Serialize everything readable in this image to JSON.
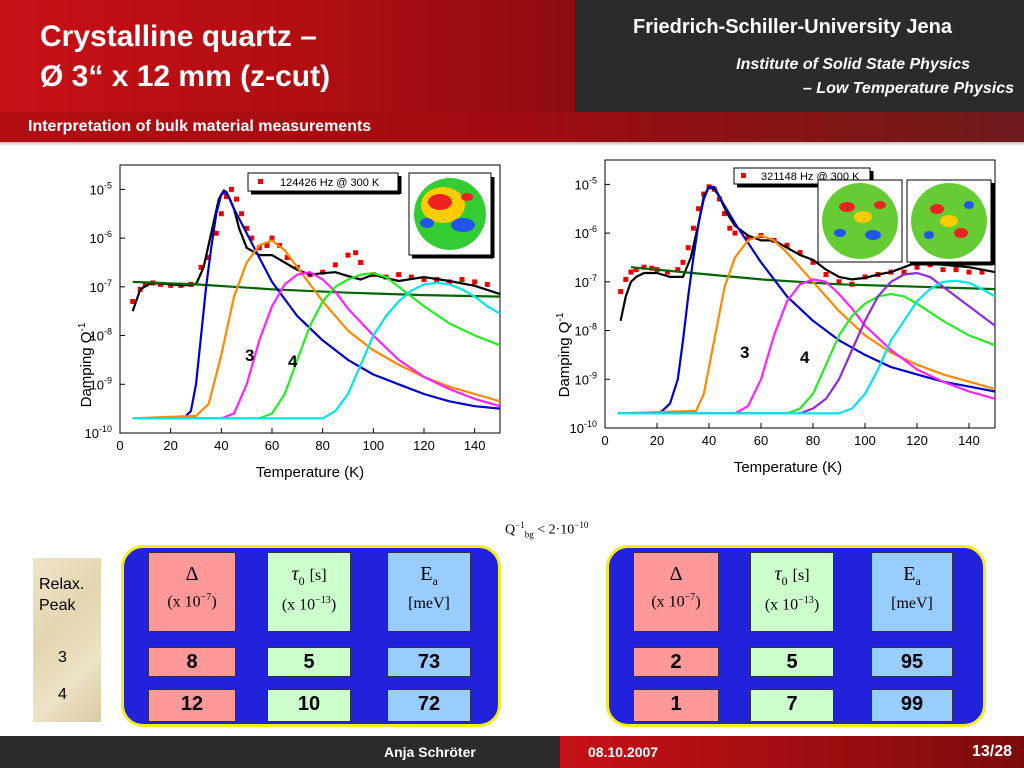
{
  "header": {
    "title_line1": "Crystalline quartz –",
    "title_line2": "Ø 3“ x 12 mm (z-cut)",
    "university": "Friedrich-Schiller-University Jena",
    "institute_line1": "Institute of Solid State Physics",
    "institute_line2": "– Low Temperature Physics",
    "subtitle": "Interpretation of bulk material measurements"
  },
  "chart_data": [
    {
      "type": "line",
      "legend": "124426 Hz @ 300 K",
      "xlabel": "Temperature (K)",
      "ylabel": "Damping Q",
      "ylabel_sup": "-1",
      "xlim": [
        0,
        150
      ],
      "ylim_log10": [
        -10,
        -4.5
      ],
      "xticks": [
        0,
        20,
        40,
        60,
        80,
        100,
        120,
        140
      ],
      "yticks": [
        -10,
        -9,
        -8,
        -7,
        -6,
        -5
      ],
      "peak_labels": [
        "3",
        "4"
      ],
      "series": [
        {
          "color": "#ee0000",
          "style": "markers",
          "x": [
            5,
            8,
            10,
            13,
            16,
            20,
            24,
            28,
            32,
            35,
            38,
            40,
            42,
            44,
            46,
            48,
            50,
            52,
            55,
            58,
            60,
            63,
            66,
            70,
            75,
            80,
            85,
            90,
            93,
            95,
            100,
            105,
            110,
            115,
            120,
            125,
            130,
            135,
            140,
            145
          ],
          "y": [
            -7.3,
            -7.05,
            -6.95,
            -6.92,
            -6.95,
            -6.97,
            -6.97,
            -6.95,
            -6.6,
            -6.4,
            -5.9,
            -5.5,
            -5.15,
            -5.0,
            -5.2,
            -5.5,
            -5.8,
            -6.0,
            -6.2,
            -6.15,
            -6.0,
            -6.15,
            -6.4,
            -6.6,
            -6.75,
            -6.7,
            -6.55,
            -6.35,
            -6.3,
            -6.5,
            -6.75,
            -6.8,
            -6.75,
            -6.8,
            -6.85,
            -6.85,
            -6.9,
            -6.85,
            -6.9,
            -6.95
          ]
        },
        {
          "color": "#000000",
          "x": [
            5,
            8,
            12,
            16,
            20,
            25,
            30,
            33,
            36,
            39,
            41,
            43,
            45,
            47,
            50,
            55,
            60,
            65,
            70,
            75,
            80,
            85,
            90,
            95,
            100,
            105,
            110,
            120,
            130,
            140,
            150
          ],
          "y": [
            -7.5,
            -7.05,
            -6.93,
            -6.93,
            -6.95,
            -6.97,
            -6.95,
            -6.6,
            -5.9,
            -5.2,
            -5.02,
            -5.15,
            -5.4,
            -5.8,
            -6.2,
            -6.35,
            -6.35,
            -6.5,
            -6.65,
            -6.75,
            -6.72,
            -6.7,
            -6.78,
            -6.85,
            -6.75,
            -6.82,
            -6.88,
            -6.8,
            -6.88,
            -6.98,
            -7.15
          ]
        },
        {
          "color": "#006400",
          "x": [
            5,
            30,
            60,
            90,
            120,
            150
          ],
          "y": [
            -6.9,
            -6.95,
            -7.05,
            -7.12,
            -7.17,
            -7.2
          ]
        },
        {
          "color": "#0000cc",
          "x": [
            20,
            25,
            28,
            30,
            32,
            34,
            36,
            38,
            40,
            42,
            45,
            50,
            55,
            60,
            70,
            80,
            90,
            100,
            110,
            120,
            130,
            140,
            150
          ],
          "y": [
            -9.7,
            -9.7,
            -9.55,
            -9.0,
            -8.0,
            -7.0,
            -6.2,
            -5.5,
            -5.1,
            -5.05,
            -5.4,
            -5.9,
            -6.4,
            -6.9,
            -7.6,
            -8.1,
            -8.5,
            -8.8,
            -9.0,
            -9.2,
            -9.35,
            -9.45,
            -9.5
          ]
        },
        {
          "color": "#ff8800",
          "x": [
            5,
            30,
            35,
            40,
            45,
            50,
            55,
            60,
            65,
            70,
            80,
            90,
            100,
            110,
            120,
            130,
            140,
            150
          ],
          "y": [
            -9.7,
            -9.65,
            -9.4,
            -8.4,
            -7.2,
            -6.5,
            -6.15,
            -6.05,
            -6.25,
            -6.6,
            -7.3,
            -7.9,
            -8.3,
            -8.6,
            -8.85,
            -9.05,
            -9.2,
            -9.35
          ]
        },
        {
          "color": "#ff22ff",
          "x": [
            5,
            40,
            45,
            50,
            55,
            60,
            65,
            70,
            75,
            80,
            85,
            90,
            100,
            110,
            120,
            130,
            140,
            150
          ],
          "y": [
            -9.7,
            -9.7,
            -9.6,
            -9.0,
            -8.1,
            -7.4,
            -6.95,
            -6.75,
            -6.7,
            -6.85,
            -7.1,
            -7.45,
            -8.0,
            -8.5,
            -8.85,
            -9.1,
            -9.3,
            -9.45
          ]
        },
        {
          "color": "#22ee22",
          "x": [
            5,
            55,
            60,
            65,
            70,
            75,
            80,
            85,
            90,
            95,
            100,
            105,
            110,
            120,
            130,
            140,
            150
          ],
          "y": [
            -9.7,
            -9.7,
            -9.6,
            -9.2,
            -8.5,
            -7.8,
            -7.3,
            -7.0,
            -6.85,
            -6.75,
            -6.72,
            -6.8,
            -7.0,
            -7.4,
            -7.75,
            -8.0,
            -8.2
          ]
        },
        {
          "color": "#00e5e5",
          "x": [
            5,
            80,
            85,
            90,
            95,
            100,
            105,
            110,
            115,
            120,
            125,
            130,
            135,
            140,
            145,
            150
          ],
          "y": [
            -9.7,
            -9.7,
            -9.55,
            -9.2,
            -8.6,
            -8.0,
            -7.6,
            -7.3,
            -7.08,
            -6.95,
            -6.92,
            -6.95,
            -7.05,
            -7.2,
            -7.4,
            -7.55
          ]
        }
      ]
    },
    {
      "type": "line",
      "legend": "321148 Hz @ 300 K",
      "xlabel": "Temperature (K)",
      "ylabel": "Damping Q",
      "ylabel_sup": "-1",
      "xlim": [
        0,
        150
      ],
      "ylim_log10": [
        -10,
        -4.5
      ],
      "xticks": [
        0,
        20,
        40,
        60,
        80,
        100,
        120,
        140
      ],
      "yticks": [
        -10,
        -9,
        -8,
        -7,
        -6,
        -5
      ],
      "peak_labels": [
        "3",
        "4"
      ],
      "series": [
        {
          "color": "#ee0000",
          "style": "markers",
          "x": [
            6,
            8,
            10,
            12,
            15,
            18,
            20,
            24,
            28,
            30,
            32,
            34,
            36,
            38,
            40,
            42,
            44,
            46,
            48,
            50,
            55,
            60,
            65,
            70,
            75,
            80,
            85,
            90,
            95,
            100,
            105,
            110,
            115,
            120,
            125,
            130,
            135,
            140,
            145
          ],
          "y": [
            -7.2,
            -6.95,
            -6.8,
            -6.75,
            -6.7,
            -6.72,
            -6.75,
            -6.8,
            -6.75,
            -6.6,
            -6.3,
            -5.9,
            -5.5,
            -5.2,
            -5.05,
            -5.1,
            -5.3,
            -5.6,
            -5.9,
            -6.0,
            -6.1,
            -6.05,
            -6.15,
            -6.25,
            -6.4,
            -6.6,
            -6.85,
            -7.0,
            -7.05,
            -6.9,
            -6.85,
            -6.8,
            -6.8,
            -6.7,
            -6.65,
            -6.75,
            -6.75,
            -6.8,
            -6.8
          ]
        },
        {
          "color": "#000000",
          "x": [
            6,
            8,
            10,
            12,
            15,
            20,
            25,
            30,
            33,
            36,
            38,
            40,
            42,
            44,
            47,
            50,
            55,
            60,
            65,
            70,
            75,
            80,
            85,
            90,
            95,
            100,
            105,
            110,
            115,
            120,
            130,
            140,
            150
          ],
          "y": [
            -7.8,
            -7.3,
            -7.0,
            -6.9,
            -6.82,
            -6.82,
            -6.9,
            -6.9,
            -6.5,
            -5.8,
            -5.25,
            -5.05,
            -5.1,
            -5.25,
            -5.6,
            -5.85,
            -6.05,
            -6.15,
            -6.15,
            -6.3,
            -6.45,
            -6.55,
            -6.75,
            -6.9,
            -6.95,
            -6.92,
            -6.85,
            -6.8,
            -6.7,
            -6.6,
            -6.65,
            -6.7,
            -6.8
          ]
        },
        {
          "color": "#006400",
          "x": [
            10,
            30,
            60,
            90,
            120,
            150
          ],
          "y": [
            -6.7,
            -6.8,
            -6.95,
            -7.05,
            -7.1,
            -7.15
          ]
        },
        {
          "color": "#0000cc",
          "x": [
            20,
            22,
            25,
            28,
            30,
            32,
            34,
            36,
            38,
            40,
            42,
            45,
            50,
            55,
            60,
            70,
            80,
            90,
            100,
            110,
            120,
            130,
            140,
            150
          ],
          "y": [
            -9.7,
            -9.65,
            -9.5,
            -9.0,
            -8.2,
            -7.3,
            -6.5,
            -5.8,
            -5.3,
            -5.05,
            -5.05,
            -5.35,
            -5.8,
            -6.2,
            -6.6,
            -7.3,
            -7.8,
            -8.2,
            -8.5,
            -8.75,
            -8.9,
            -9.05,
            -9.15,
            -9.25
          ]
        },
        {
          "color": "#ff8800",
          "x": [
            5,
            35,
            38,
            42,
            46,
            50,
            55,
            60,
            65,
            70,
            75,
            80,
            90,
            100,
            110,
            120,
            130,
            140,
            150
          ],
          "y": [
            -9.7,
            -9.65,
            -9.3,
            -8.2,
            -7.1,
            -6.5,
            -6.15,
            -6.05,
            -6.15,
            -6.4,
            -6.7,
            -7.0,
            -7.6,
            -8.1,
            -8.45,
            -8.7,
            -8.9,
            -9.05,
            -9.2
          ]
        },
        {
          "color": "#ff22ff",
          "x": [
            5,
            50,
            55,
            60,
            65,
            70,
            75,
            80,
            85,
            90,
            95,
            100,
            110,
            120,
            130,
            140,
            150
          ],
          "y": [
            -9.7,
            -9.7,
            -9.55,
            -9.0,
            -8.1,
            -7.4,
            -7.05,
            -6.95,
            -7.0,
            -7.25,
            -7.55,
            -7.9,
            -8.4,
            -8.8,
            -9.05,
            -9.25,
            -9.4
          ]
        },
        {
          "color": "#22ee22",
          "x": [
            5,
            70,
            75,
            80,
            85,
            90,
            95,
            100,
            105,
            110,
            115,
            120,
            130,
            140,
            150
          ],
          "y": [
            -9.7,
            -9.7,
            -9.6,
            -9.3,
            -8.7,
            -8.1,
            -7.7,
            -7.45,
            -7.3,
            -7.25,
            -7.3,
            -7.45,
            -7.8,
            -8.1,
            -8.3
          ]
        },
        {
          "color": "#8a2be2",
          "x": [
            5,
            75,
            80,
            85,
            90,
            95,
            100,
            105,
            110,
            115,
            120,
            125,
            130,
            140,
            150
          ],
          "y": [
            -9.7,
            -9.7,
            -9.6,
            -9.4,
            -9.0,
            -8.4,
            -7.8,
            -7.3,
            -7.0,
            -6.85,
            -6.82,
            -6.9,
            -7.1,
            -7.5,
            -7.9
          ]
        },
        {
          "color": "#00e5e5",
          "x": [
            5,
            90,
            95,
            100,
            105,
            110,
            115,
            120,
            125,
            130,
            135,
            140,
            145,
            150
          ],
          "y": [
            -9.7,
            -9.7,
            -9.6,
            -9.3,
            -8.8,
            -8.2,
            -7.8,
            -7.4,
            -7.15,
            -7.0,
            -6.98,
            -7.02,
            -7.15,
            -7.3
          ]
        }
      ]
    }
  ],
  "background_rate": {
    "text": "< 2·10",
    "exp": "−10",
    "sym": "Q",
    "sym_sup": "−1",
    "sym_sub": "bg"
  },
  "relax_label": {
    "line1": "Relax.",
    "line2": "Peak",
    "row1": "3",
    "row2": "4"
  },
  "tables": [
    {
      "delta_sym": "Δ",
      "delta_unit": "x 10",
      "delta_exp": "−7",
      "tau_sym": "τ",
      "tau_sub": "0",
      "tau_unit_s": "[s]",
      "tau_unit": "x 10",
      "tau_exp": "−13",
      "ea_sym": "E",
      "ea_sub": "a",
      "ea_unit": "[meV]",
      "rows": [
        [
          "8",
          "5",
          "73"
        ],
        [
          "12",
          "10",
          "72"
        ]
      ]
    },
    {
      "delta_sym": "Δ",
      "delta_unit": "x 10",
      "delta_exp": "−7",
      "tau_sym": "τ",
      "tau_sub": "0",
      "tau_unit_s": "[s]",
      "tau_unit": "x 10",
      "tau_exp": "−13",
      "ea_sym": "E",
      "ea_sub": "a",
      "ea_unit": "[meV]",
      "rows": [
        [
          "2",
          "5",
          "95"
        ],
        [
          "1",
          "7",
          "99"
        ]
      ]
    }
  ],
  "footer": {
    "presenter": "Anja Schröter",
    "date": "08.10.2007",
    "page": "13/28"
  }
}
